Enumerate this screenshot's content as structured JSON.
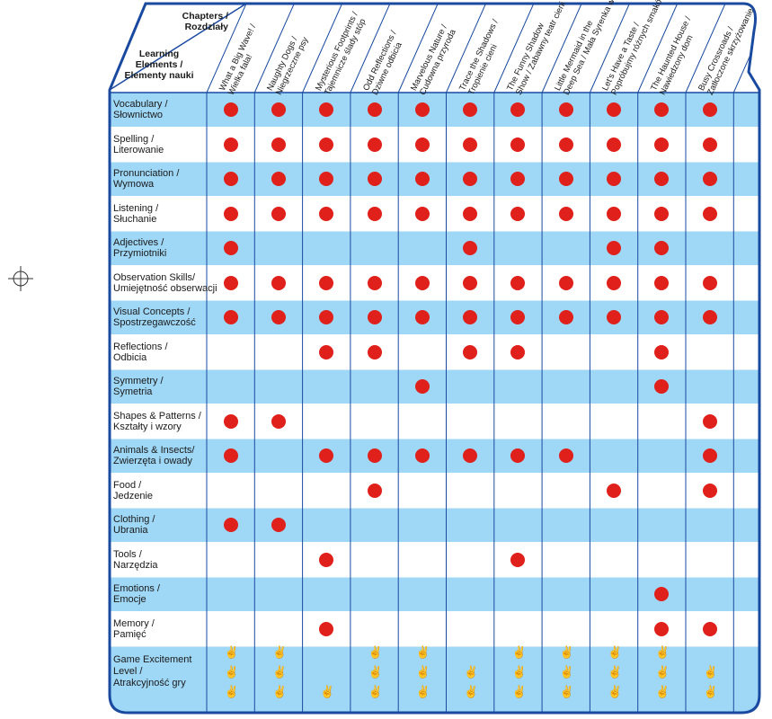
{
  "corner": {
    "chapters_line1": "Chapters /",
    "chapters_line2": "Rozdziały",
    "learning_line1": "Learning",
    "learning_line2": "Elements /",
    "learning_line3": "Elementy nauki"
  },
  "chapters": [
    {
      "line1": "What a Big Wave! /",
      "line2": "Wielka fala!"
    },
    {
      "line1": "Naughty Dogs /",
      "line2": "Niegrzeczne psy"
    },
    {
      "line1": "Mysterious Footprints /",
      "line2": "Tajemnicze ślady stóp"
    },
    {
      "line1": "Odd Reflections /",
      "line2": "Dziwne odbicia"
    },
    {
      "line1": "Marvelous Nature /",
      "line2": "Cudowna przyroda"
    },
    {
      "line1": "Trace the Shadows /",
      "line2": "Tropienie cieni"
    },
    {
      "line1": "The Funny Shadow",
      "line2": "Show / Zabawny teatr cieni"
    },
    {
      "line1": "Little Mermaid in the",
      "line2": "Deep Sea / Mała Syrenka w głębinach morza"
    },
    {
      "line1": "Let's Have a Taste /",
      "line2": "Popróbujmy różnych smaków"
    },
    {
      "line1": "The Haunted House /",
      "line2": "Nawiedzony dom"
    },
    {
      "line1": "Busy Crossroads /",
      "line2": "Zatłoczone skrzyżowanie"
    }
  ],
  "rows": [
    {
      "label1": "Vocabulary /",
      "label2": "Słownictwo",
      "marks": [
        1,
        1,
        1,
        1,
        1,
        1,
        1,
        1,
        1,
        1,
        1
      ]
    },
    {
      "label1": "Spelling  /",
      "label2": "Literowanie",
      "marks": [
        1,
        1,
        1,
        1,
        1,
        1,
        1,
        1,
        1,
        1,
        1
      ]
    },
    {
      "label1": "Pronunciation  /",
      "label2": "Wymowa",
      "marks": [
        1,
        1,
        1,
        1,
        1,
        1,
        1,
        1,
        1,
        1,
        1
      ]
    },
    {
      "label1": "Listening /",
      "label2": "Słuchanie",
      "marks": [
        1,
        1,
        1,
        1,
        1,
        1,
        1,
        1,
        1,
        1,
        1
      ]
    },
    {
      "label1": "Adjectives /",
      "label2": "Przymiotniki",
      "marks": [
        1,
        0,
        0,
        0,
        0,
        1,
        0,
        0,
        1,
        1,
        0
      ]
    },
    {
      "label1": "Observation Skills/",
      "label2": "Umiejętność obserwacji",
      "marks": [
        1,
        1,
        1,
        1,
        1,
        1,
        1,
        1,
        1,
        1,
        1
      ]
    },
    {
      "label1": "Visual Concepts /",
      "label2": "Spostrzegawczość",
      "marks": [
        1,
        1,
        1,
        1,
        1,
        1,
        1,
        1,
        1,
        1,
        1
      ]
    },
    {
      "label1": "Reflections /",
      "label2": "Odbicia",
      "marks": [
        0,
        0,
        1,
        1,
        0,
        1,
        1,
        0,
        0,
        1,
        0
      ]
    },
    {
      "label1": "Symmetry /",
      "label2": "Symetria",
      "marks": [
        0,
        0,
        0,
        0,
        1,
        0,
        0,
        0,
        0,
        1,
        0
      ]
    },
    {
      "label1": "Shapes & Patterns /",
      "label2": "Kształty i wzory",
      "marks": [
        1,
        1,
        0,
        0,
        0,
        0,
        0,
        0,
        0,
        0,
        1
      ]
    },
    {
      "label1": "Animals & Insects/",
      "label2": "Zwierzęta i owady",
      "marks": [
        1,
        0,
        1,
        1,
        1,
        1,
        1,
        1,
        0,
        0,
        1
      ]
    },
    {
      "label1": "Food /",
      "label2": "Jedzenie",
      "marks": [
        0,
        0,
        0,
        1,
        0,
        0,
        0,
        0,
        1,
        0,
        1
      ]
    },
    {
      "label1": "Clothing /",
      "label2": "Ubrania",
      "marks": [
        1,
        1,
        0,
        0,
        0,
        0,
        0,
        0,
        0,
        0,
        0
      ]
    },
    {
      "label1": "Tools /",
      "label2": "Narzędzia",
      "marks": [
        0,
        0,
        1,
        0,
        0,
        0,
        1,
        0,
        0,
        0,
        0
      ]
    },
    {
      "label1": "Emotions  /",
      "label2": "Emocje",
      "marks": [
        0,
        0,
        0,
        0,
        0,
        0,
        0,
        0,
        0,
        1,
        0
      ]
    },
    {
      "label1": "Memory /",
      "label2": "Pamięć",
      "marks": [
        0,
        0,
        1,
        0,
        0,
        0,
        0,
        0,
        0,
        1,
        1
      ]
    }
  ],
  "game_excitement": {
    "label1": "Game Excitement",
    "label2": "Level /",
    "label3": "Atrakcyjność gry",
    "levels": [
      3,
      3,
      1,
      3,
      3,
      2,
      3,
      3,
      3,
      3,
      2
    ]
  },
  "colors": {
    "band_blue": "#9fd7f6",
    "border_blue": "#1a4aa0",
    "dot_red": "#e0201b",
    "thumb_yellow": "#e2a400"
  }
}
